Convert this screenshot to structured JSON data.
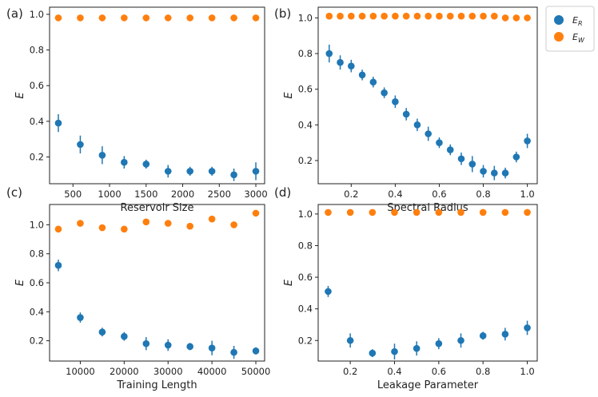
{
  "colors": {
    "ER": "#1f77b4",
    "EW": "#ff7f0e"
  },
  "legend": {
    "er_base": "E",
    "er_sub": "R",
    "ew_base": "E",
    "ew_sub": "W"
  },
  "chart_data": [
    {
      "type": "scatter",
      "panel_label": "(a)",
      "xlabel": "Reservoir Size",
      "ylabel": "E",
      "xlim": [
        180,
        3120
      ],
      "ylim": [
        0.05,
        1.04
      ],
      "xticks": [
        500,
        1000,
        1500,
        2000,
        2500,
        3000
      ],
      "xtick_labels": [
        "500",
        "1000",
        "1500",
        "2000",
        "2500",
        "3000"
      ],
      "yticks": [
        0.2,
        0.4,
        0.6,
        0.8,
        1.0
      ],
      "ytick_labels": [
        "0.2",
        "0.4",
        "0.6",
        "0.8",
        "1.0"
      ],
      "x": [
        300,
        600,
        900,
        1200,
        1500,
        1800,
        2100,
        2400,
        2700,
        3000
      ],
      "series": [
        {
          "name": "E_R",
          "values": [
            0.39,
            0.27,
            0.21,
            0.17,
            0.16,
            0.12,
            0.12,
            0.12,
            0.1,
            0.12
          ],
          "errors": [
            0.05,
            0.05,
            0.05,
            0.035,
            0.025,
            0.035,
            0.025,
            0.025,
            0.035,
            0.05
          ]
        },
        {
          "name": "E_W",
          "values": [
            0.98,
            0.98,
            0.98,
            0.98,
            0.98,
            0.98,
            0.98,
            0.98,
            0.98,
            0.98
          ]
        }
      ]
    },
    {
      "type": "scatter",
      "panel_label": "(b)",
      "xlabel": "Spectral Radius",
      "ylabel": "E",
      "xlim": [
        0.05,
        1.045
      ],
      "ylim": [
        0.07,
        1.06
      ],
      "xticks": [
        0.2,
        0.4,
        0.6,
        0.8,
        1.0
      ],
      "xtick_labels": [
        "0.2",
        "0.4",
        "0.6",
        "0.8",
        "1.0"
      ],
      "yticks": [
        0.2,
        0.4,
        0.6,
        0.8,
        1.0
      ],
      "ytick_labels": [
        "0.2",
        "0.4",
        "0.6",
        "0.8",
        "1.0"
      ],
      "x": [
        0.1,
        0.15,
        0.2,
        0.25,
        0.3,
        0.35,
        0.4,
        0.45,
        0.5,
        0.55,
        0.6,
        0.65,
        0.7,
        0.75,
        0.8,
        0.85,
        0.9,
        0.95,
        1.0
      ],
      "series": [
        {
          "name": "E_R",
          "values": [
            0.8,
            0.75,
            0.73,
            0.68,
            0.64,
            0.58,
            0.53,
            0.46,
            0.4,
            0.35,
            0.3,
            0.26,
            0.21,
            0.18,
            0.14,
            0.13,
            0.13,
            0.22,
            0.31
          ],
          "errors": [
            0.05,
            0.04,
            0.035,
            0.03,
            0.03,
            0.03,
            0.035,
            0.035,
            0.035,
            0.04,
            0.03,
            0.03,
            0.035,
            0.045,
            0.035,
            0.04,
            0.03,
            0.03,
            0.04
          ]
        },
        {
          "name": "E_W",
          "values": [
            1.01,
            1.01,
            1.01,
            1.01,
            1.01,
            1.01,
            1.01,
            1.01,
            1.01,
            1.01,
            1.01,
            1.01,
            1.01,
            1.01,
            1.01,
            1.01,
            1.0,
            1.0,
            1.0
          ]
        }
      ]
    },
    {
      "type": "scatter",
      "panel_label": "(c)",
      "xlabel": "Training Length",
      "ylabel": "E",
      "xlim": [
        3000,
        52000
      ],
      "ylim": [
        0.06,
        1.14
      ],
      "xticks": [
        10000,
        20000,
        30000,
        40000,
        50000
      ],
      "xtick_labels": [
        "10000",
        "20000",
        "30000",
        "40000",
        "50000"
      ],
      "yticks": [
        0.2,
        0.4,
        0.6,
        0.8,
        1.0
      ],
      "ytick_labels": [
        "0.2",
        "0.4",
        "0.6",
        "0.8",
        "1.0"
      ],
      "x": [
        5000,
        10000,
        15000,
        20000,
        25000,
        30000,
        35000,
        40000,
        45000,
        50000
      ],
      "series": [
        {
          "name": "E_R",
          "values": [
            0.72,
            0.36,
            0.26,
            0.23,
            0.18,
            0.17,
            0.16,
            0.15,
            0.12,
            0.13
          ],
          "errors": [
            0.04,
            0.035,
            0.03,
            0.03,
            0.045,
            0.04,
            0.025,
            0.05,
            0.045,
            0.025
          ]
        },
        {
          "name": "E_W",
          "values": [
            0.97,
            1.01,
            0.98,
            0.97,
            1.02,
            1.01,
            0.99,
            1.04,
            1.0,
            1.08
          ]
        }
      ]
    },
    {
      "type": "scatter",
      "panel_label": "(d)",
      "xlabel": "Leakage Parameter",
      "ylabel": "E",
      "xlim": [
        0.055,
        1.045
      ],
      "ylim": [
        0.07,
        1.06
      ],
      "xticks": [
        0.2,
        0.4,
        0.6,
        0.8,
        1.0
      ],
      "xtick_labels": [
        "0.2",
        "0.4",
        "0.6",
        "0.8",
        "1.0"
      ],
      "yticks": [
        0.2,
        0.4,
        0.6,
        0.8,
        1.0
      ],
      "ytick_labels": [
        "0.2",
        "0.4",
        "0.6",
        "0.8",
        "1.0"
      ],
      "x": [
        0.1,
        0.2,
        0.3,
        0.4,
        0.5,
        0.6,
        0.7,
        0.8,
        0.9,
        1.0
      ],
      "series": [
        {
          "name": "E_R",
          "values": [
            0.51,
            0.2,
            0.12,
            0.13,
            0.15,
            0.18,
            0.2,
            0.23,
            0.24,
            0.28
          ],
          "errors": [
            0.035,
            0.045,
            0.025,
            0.05,
            0.045,
            0.035,
            0.045,
            0.025,
            0.04,
            0.045
          ]
        },
        {
          "name": "E_W",
          "values": [
            1.01,
            1.01,
            1.01,
            1.01,
            1.01,
            1.01,
            1.01,
            1.01,
            1.01,
            1.01
          ]
        }
      ]
    }
  ]
}
